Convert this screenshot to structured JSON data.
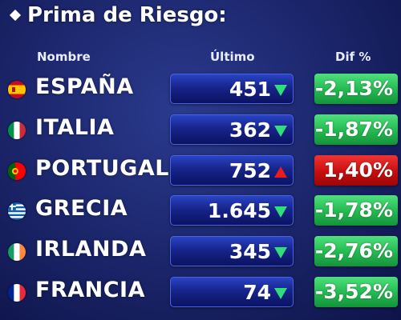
{
  "title": "Prima de Riesgo:",
  "headers": {
    "name": "Nombre",
    "last": "Último",
    "dif": "Dif %"
  },
  "colors": {
    "up": "#e81c1c",
    "down": "#2fe07a",
    "background": "#1a2468"
  },
  "rows": [
    {
      "country": "ESPAÑA",
      "flag": "spain-flag-icon",
      "value": "451",
      "dif": "-2,13%",
      "trend": "down"
    },
    {
      "country": "ITALIA",
      "flag": "italy-flag-icon",
      "value": "362",
      "dif": "-1,87%",
      "trend": "down"
    },
    {
      "country": "PORTUGAL",
      "flag": "portugal-flag-icon",
      "value": "752",
      "dif": "1,40%",
      "trend": "up"
    },
    {
      "country": "GRECIA",
      "flag": "greece-flag-icon",
      "value": "1.645",
      "dif": "-1,78%",
      "trend": "down"
    },
    {
      "country": "IRLANDA",
      "flag": "ireland-flag-icon",
      "value": "345",
      "dif": "-2,76%",
      "trend": "down"
    },
    {
      "country": "FRANCIA",
      "flag": "france-flag-icon",
      "value": "74",
      "dif": "-3,52%",
      "trend": "down"
    }
  ]
}
